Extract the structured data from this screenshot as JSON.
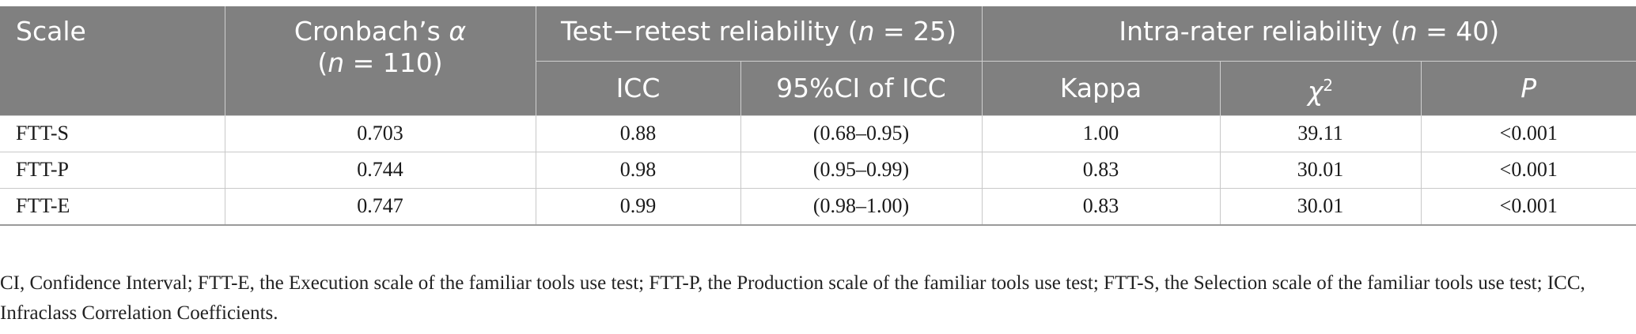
{
  "table": {
    "headers": {
      "scale": "Scale",
      "alpha_label": "Cronbach’s ",
      "alpha_symbol": "α",
      "alpha_n_open": "(",
      "alpha_n_var": "n",
      "alpha_n_rest": " = 110)",
      "test_retest_label": "Test−retest reliability (",
      "test_retest_n_var": "n",
      "test_retest_n_rest": " = 25)",
      "intra_rater_label": "Intra-rater reliability (",
      "intra_rater_n_var": "n",
      "intra_rater_n_rest": " = 40)",
      "icc": "ICC",
      "ci_icc": "95%CI of ICC",
      "kappa": "Kappa",
      "chi_symbol": "χ",
      "chi_sup": "2",
      "p": "P"
    },
    "rows": [
      {
        "scale": "FTT-S",
        "alpha": "0.703",
        "icc": "0.88",
        "ci": "(0.68–0.95)",
        "kappa": "1.00",
        "chi2": "39.11",
        "p": "<0.001"
      },
      {
        "scale": "FTT-P",
        "alpha": "0.744",
        "icc": "0.98",
        "ci": "(0.95–0.99)",
        "kappa": "0.83",
        "chi2": "30.01",
        "p": "<0.001"
      },
      {
        "scale": "FTT-E",
        "alpha": "0.747",
        "icc": "0.99",
        "ci": "(0.98–1.00)",
        "kappa": "0.83",
        "chi2": "30.01",
        "p": "<0.001"
      }
    ]
  },
  "footnote": "CI, Confidence Interval; FTT-E, the Execution scale of the familiar tools use test; FTT-P, the Production scale of the familiar tools use test; FTT-S, the Selection scale of the familiar tools use test; ICC, Infraclass Correlation Coefficients.",
  "colors": {
    "header_bg": "#808080",
    "header_text": "#ffffff",
    "body_text": "#1a1a1a",
    "grid_line": "#c8c8c8"
  }
}
